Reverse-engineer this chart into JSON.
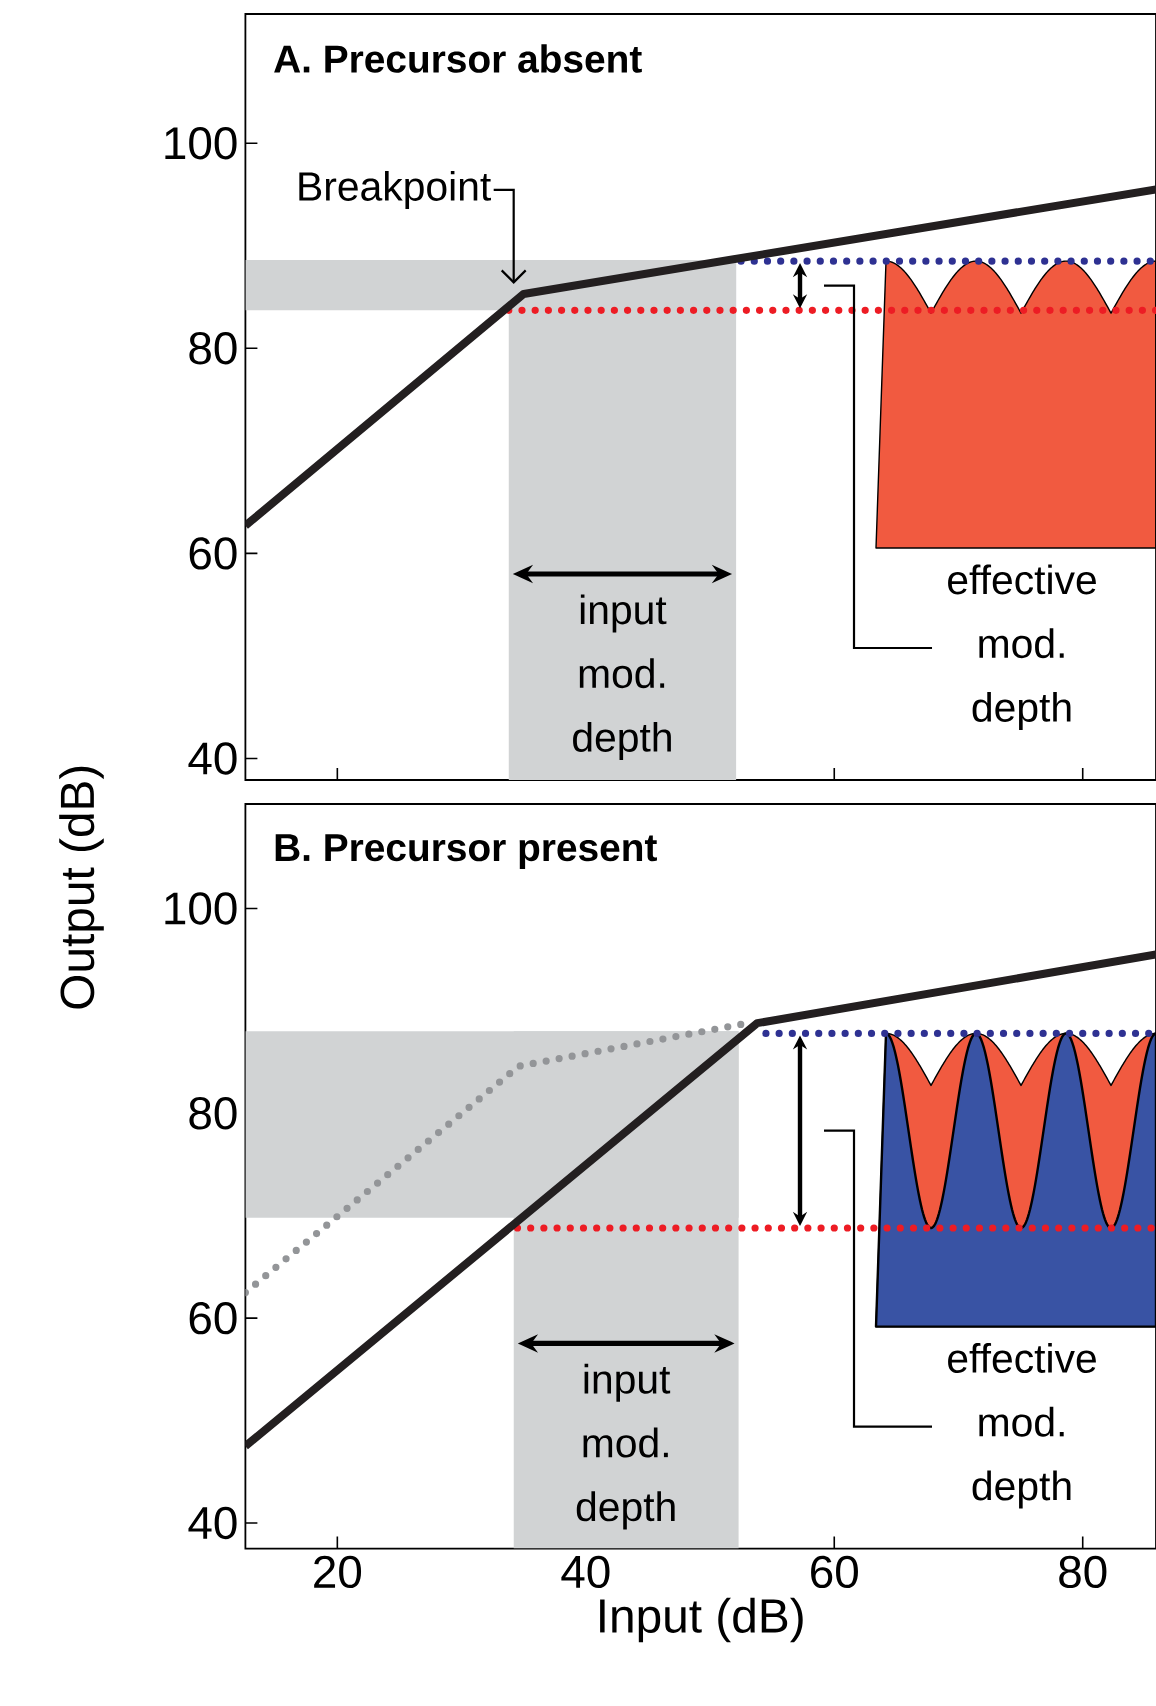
{
  "chart_data": [
    {
      "type": "line",
      "title": "A. Precursor absent",
      "ylabel": "Output (dB)",
      "xlim": [
        12.6,
        85.9
      ],
      "ylim": [
        37.9,
        112.6
      ],
      "xticks": [
        20,
        40,
        60,
        80
      ],
      "yticks": [
        40,
        60,
        80,
        100
      ],
      "tick_labels": "y",
      "series": [
        {
          "line_style": "dotted",
          "color": "#2e3192",
          "x": [
            52.5,
            85.9
          ],
          "values": [
            88.5,
            88.5
          ]
        },
        {
          "line_style": "dotted",
          "color": "#ed1c24",
          "x": [
            33.8,
            85.9
          ],
          "values": [
            83.7,
            83.7
          ]
        },
        {
          "line_style": "solid",
          "color": "#231f20",
          "x": [
            12.6,
            35.0,
            85.9
          ],
          "values": [
            62.7,
            85.3,
            95.5
          ]
        }
      ],
      "bands": [
        {
          "axis": "x",
          "from": 33.8,
          "to": 52.1,
          "color": "#d1d3d4"
        },
        {
          "axis": "y",
          "from": 83.7,
          "to": 88.6,
          "color": "#d1d3d4"
        }
      ],
      "annotations": [
        {
          "text": "Breakpoint",
          "x": 35.0,
          "y": 85.3
        },
        "input mod. depth",
        "effective mod. depth"
      ]
    },
    {
      "type": "line",
      "title": "B. Precursor present",
      "xlabel": "Input (dB)",
      "xlim": [
        12.6,
        85.9
      ],
      "ylim": [
        37.5,
        110.2
      ],
      "xticks": [
        20,
        40,
        60,
        80
      ],
      "yticks": [
        40,
        60,
        80,
        100
      ],
      "series": [
        {
          "line_style": "dotted",
          "color": "#2e3192",
          "x": [
            54.5,
            85.9
          ],
          "values": [
            87.8,
            87.8
          ]
        },
        {
          "line_style": "dotted",
          "color": "#ed1c24",
          "x": [
            34.5,
            85.9
          ],
          "values": [
            68.8,
            68.8
          ]
        },
        {
          "line_style": "dotted",
          "color": "#939598",
          "x": [
            12.6,
            34.6,
            53.0
          ],
          "values": [
            62.5,
            84.6,
            88.8
          ]
        },
        {
          "line_style": "solid",
          "color": "#231f20",
          "x": [
            12.6,
            53.8,
            85.9
          ],
          "values": [
            47.5,
            88.8,
            95.5
          ]
        }
      ],
      "bands": [
        {
          "axis": "x",
          "from": 34.2,
          "to": 52.3,
          "color": "#d1d3d4"
        },
        {
          "axis": "y",
          "from": 69.8,
          "to": 88.0,
          "color": "#d1d3d4"
        }
      ],
      "annotations": [
        "input mod. depth",
        "effective mod. depth"
      ]
    }
  ]
}
